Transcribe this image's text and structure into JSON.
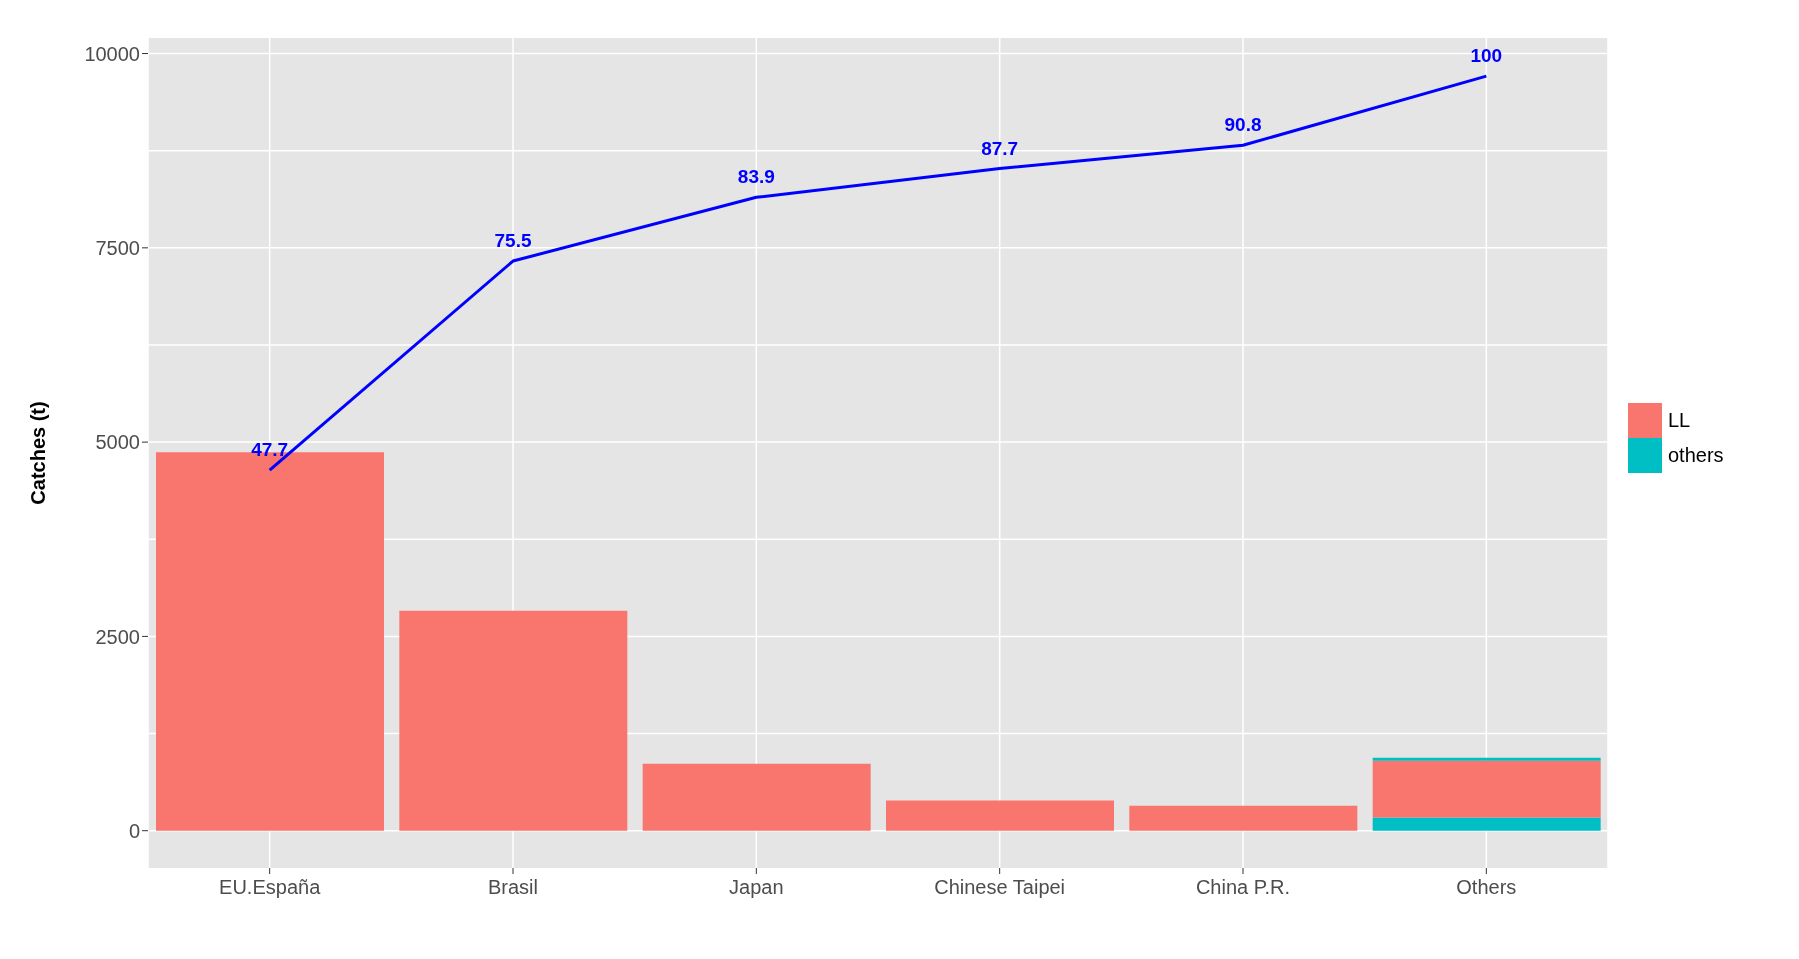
{
  "chart_data": {
    "type": "bar",
    "ylabel": "Catches (t)",
    "categories": [
      "EU.España",
      "Brasil",
      "Japan",
      "Chinese Taipei",
      "China P.R.",
      "Others"
    ],
    "stacked": true,
    "series": [
      {
        "name": "others",
        "color": "#00bfc4",
        "values": [
          null,
          null,
          null,
          null,
          null,
          170
        ]
      },
      {
        "name": "LL",
        "color": "#f8766d",
        "values": [
          4870,
          2830,
          860,
          390,
          320,
          730
        ]
      },
      {
        "color": "#00bfc4",
        "values": [
          null,
          null,
          null,
          null,
          null,
          40
        ]
      },
      {
        "type": "line",
        "color": "#0000ff",
        "values": [
          4640,
          7330,
          8150,
          8520,
          8820,
          9710
        ]
      }
    ],
    "annotations": [
      {
        "text": "47.7",
        "x": "EU.España",
        "y": 4640
      },
      {
        "text": "75.5",
        "x": "Brasil",
        "y": 7330
      },
      {
        "text": "83.9",
        "x": "Japan",
        "y": 8150
      },
      {
        "text": "87.7",
        "x": "Chinese Taipei",
        "y": 8520
      },
      {
        "text": "90.8",
        "x": "China P.R.",
        "y": 8820
      },
      {
        "text": "100",
        "x": "Others",
        "y": 9710
      }
    ],
    "ylim": [
      -480,
      10200
    ],
    "yticks": [
      0,
      2500,
      5000,
      7500,
      10000
    ],
    "grid": true,
    "legend": "right"
  }
}
